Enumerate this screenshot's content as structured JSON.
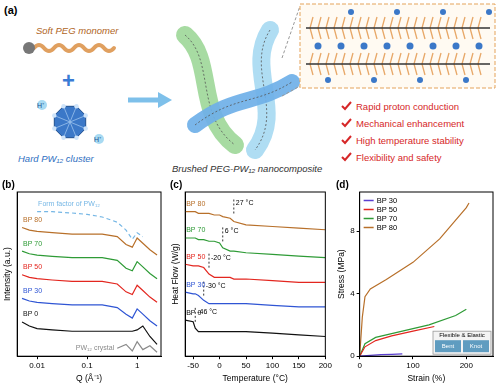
{
  "diagram": {
    "label": "(a)",
    "monomer": "Soft PEG monomer",
    "operator": "+",
    "cluster": "Hard PW₁₂ cluster",
    "proton": "H⁺",
    "product": "Brushed PEG-PW₁₂ nanocomposite",
    "features": [
      "Rapid proton conduction",
      "Mechanical enhancement",
      "High temperature stability",
      "Flexibility and safety"
    ]
  },
  "chart_data": [
    {
      "type": "line",
      "title": "(b)",
      "x_label": "Q (Å⁻¹)",
      "y_label": "Intensity (a.u.)",
      "log": "x",
      "grid": false,
      "tick_labels": "x",
      "x": [
        0.005,
        0.007,
        0.01,
        0.02,
        0.05,
        0.1,
        0.2,
        0.4,
        0.6,
        0.8,
        1.0,
        1.3,
        1.8,
        2.5
      ],
      "xlim": [
        0.004,
        3
      ],
      "xticks": [
        0.01,
        0.1,
        1
      ],
      "ylim": [
        0,
        12.5
      ],
      "series": [
        {
          "name": "PW₁₂ crystal",
          "color": "#8a8a8a",
          "values": [
            null,
            null,
            null,
            null,
            null,
            null,
            null,
            0.6,
            0.9,
            0.4,
            1.1,
            0.5,
            0.8,
            0.3
          ]
        },
        {
          "name": "BP 0",
          "color": "#111111",
          "values": [
            2.6,
            2.3,
            2.1,
            2.0,
            1.9,
            1.9,
            1.9,
            1.9,
            1.9,
            1.9,
            2.0,
            2.3,
            1.5,
            0.9
          ]
        },
        {
          "name": "BP 30",
          "color": "#2f55d4",
          "values": [
            4.4,
            4.2,
            4.1,
            4.0,
            3.9,
            3.9,
            3.9,
            3.7,
            3.2,
            2.9,
            3.6,
            3.2,
            2.7,
            2.3
          ]
        },
        {
          "name": "BP 50",
          "color": "#e3261f",
          "values": [
            6.2,
            6.0,
            5.9,
            5.8,
            5.7,
            5.7,
            5.7,
            5.5,
            4.9,
            4.7,
            5.4,
            5.0,
            4.5,
            4.1
          ]
        },
        {
          "name": "BP 70",
          "color": "#2e9b36",
          "values": [
            8.0,
            7.8,
            7.7,
            7.6,
            7.5,
            7.5,
            7.5,
            7.3,
            6.7,
            6.5,
            7.2,
            6.8,
            6.3,
            5.9
          ]
        },
        {
          "name": "BP 80",
          "color": "#b8702a",
          "values": [
            9.8,
            9.6,
            9.5,
            9.4,
            9.3,
            9.3,
            9.3,
            9.1,
            8.5,
            8.3,
            9.0,
            8.6,
            8.1,
            7.7
          ]
        },
        {
          "name": "Form factor of PW₁₂",
          "color": "#76b7e5",
          "line_style": "dashed",
          "values": [
            null,
            null,
            11.0,
            11.0,
            10.9,
            10.8,
            10.6,
            10.2,
            9.6,
            8.9,
            9.4,
            9.1,
            null,
            null
          ]
        }
      ]
    },
    {
      "type": "line",
      "title": "(c)",
      "x_label": "Temperature (°C)",
      "y_label": "Heat Flow (W/g)",
      "grid": false,
      "tick_labels": "x",
      "x": [
        -65,
        -50,
        -46,
        -40,
        -30,
        -20,
        -10,
        0,
        6,
        20,
        27,
        50,
        100,
        150,
        200
      ],
      "xlim": [
        -65,
        200
      ],
      "xticks": [
        -50,
        0,
        50,
        100,
        150,
        200
      ],
      "ylim": [
        0,
        10
      ],
      "series": [
        {
          "name": "BP 0",
          "color": "#111111",
          "values": [
            2.2,
            2.1,
            1.7,
            1.5,
            1.5,
            1.5,
            1.5,
            1.5,
            1.5,
            1.5,
            1.5,
            1.5,
            1.4,
            1.3,
            1.2
          ]
        },
        {
          "name": "BP 30",
          "color": "#2f55d4",
          "values": [
            3.9,
            3.8,
            3.8,
            3.7,
            3.4,
            3.2,
            3.2,
            3.2,
            3.2,
            3.2,
            3.2,
            3.2,
            3.1,
            3.0,
            3.0
          ]
        },
        {
          "name": "BP 50",
          "color": "#e3261f",
          "values": [
            5.6,
            5.5,
            5.5,
            5.5,
            5.4,
            5.0,
            4.8,
            4.8,
            4.8,
            4.8,
            4.7,
            4.7,
            4.6,
            4.5,
            4.5
          ]
        },
        {
          "name": "BP 70",
          "color": "#2e9b36",
          "values": [
            7.2,
            7.2,
            7.2,
            7.1,
            7.1,
            7.0,
            7.0,
            6.9,
            6.6,
            6.4,
            6.4,
            6.3,
            6.2,
            6.1,
            6.0
          ]
        },
        {
          "name": "BP 80",
          "color": "#b8702a",
          "values": [
            8.8,
            8.8,
            8.8,
            8.7,
            8.7,
            8.7,
            8.6,
            8.6,
            8.5,
            8.4,
            8.2,
            8.0,
            7.9,
            7.8,
            7.7
          ]
        }
      ],
      "annotations": [
        {
          "x": -46,
          "y": 2.7,
          "text": "-46 °C"
        },
        {
          "x": -30,
          "y": 4.3,
          "text": "-30 °C"
        },
        {
          "x": -20,
          "y": 6.0,
          "text": "-20 °C"
        },
        {
          "x": 6,
          "y": 7.6,
          "text": "6 °C"
        },
        {
          "x": 27,
          "y": 9.3,
          "text": "27 °C"
        }
      ]
    },
    {
      "type": "line",
      "title": "(d)",
      "x_label": "Strain (%)",
      "y_label": "Stress (MPa)",
      "grid": false,
      "legend": "top-left",
      "xlim": [
        0,
        250
      ],
      "xticks": [
        0,
        100,
        200
      ],
      "ylim": [
        0,
        10.5
      ],
      "yticks": [
        0,
        4,
        8
      ],
      "series": [
        {
          "name": "BP 30",
          "color": "#5b3fd0",
          "x": [
            0,
            20,
            40,
            60,
            80
          ],
          "values": [
            0,
            0.05,
            0.1,
            0.12,
            0.15
          ]
        },
        {
          "name": "BP 50",
          "color": "#e3261f",
          "x": [
            0,
            10,
            30,
            60,
            100,
            140
          ],
          "values": [
            0,
            0.6,
            1.0,
            1.3,
            1.6,
            1.9
          ]
        },
        {
          "name": "BP 70",
          "color": "#2e9b36",
          "x": [
            0,
            10,
            30,
            80,
            130,
            180,
            200
          ],
          "values": [
            0,
            0.8,
            1.2,
            1.6,
            2.0,
            2.6,
            3.0
          ]
        },
        {
          "name": "BP 80",
          "color": "#b8702a",
          "x": [
            0,
            5,
            10,
            20,
            50,
            100,
            150,
            200,
            205
          ],
          "values": [
            0,
            2.5,
            3.8,
            4.3,
            4.9,
            6.0,
            7.5,
            9.5,
            9.8
          ]
        }
      ],
      "inset": {
        "text": "Flexible & Elastic",
        "photos": [
          "Bent",
          "Knot"
        ]
      }
    }
  ]
}
